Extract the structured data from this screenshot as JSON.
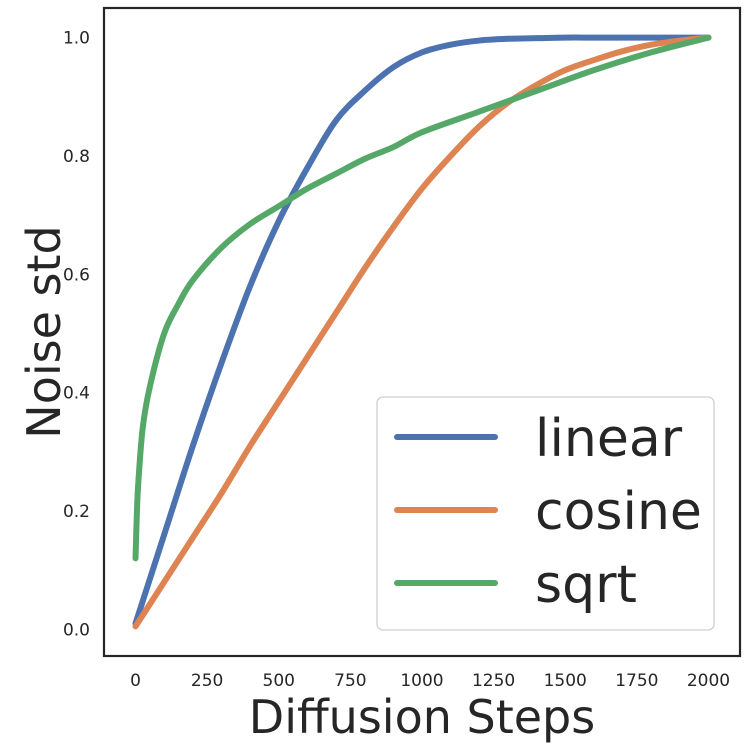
{
  "chart_data": {
    "type": "line",
    "title": "",
    "xlabel": "Diffusion Steps",
    "ylabel": "Noise std",
    "xlim": [
      -110,
      2110
    ],
    "ylim": [
      -0.045,
      1.05
    ],
    "xticks": [
      0,
      250,
      500,
      750,
      1000,
      1250,
      1500,
      1750,
      2000
    ],
    "yticks": [
      0.0,
      0.2,
      0.4,
      0.6,
      0.8,
      1.0
    ],
    "xtick_labels": [
      "0",
      "250",
      "500",
      "750",
      "1000",
      "1250",
      "1500",
      "1750",
      "2000"
    ],
    "ytick_labels": [
      "0.0",
      "0.2",
      "0.4",
      "0.6",
      "0.8",
      "1.0"
    ],
    "grid": false,
    "legend_position": "lower-right",
    "series": [
      {
        "name": "linear",
        "color": "#4c72b0",
        "x": [
          0,
          100,
          200,
          300,
          400,
          500,
          600,
          700,
          800,
          900,
          1000,
          1100,
          1200,
          1300,
          1400,
          1500,
          1600,
          1700,
          1800,
          1900,
          2000
        ],
        "y": [
          0.01,
          0.16,
          0.31,
          0.45,
          0.58,
          0.69,
          0.78,
          0.86,
          0.91,
          0.95,
          0.975,
          0.988,
          0.995,
          0.998,
          0.999,
          1.0,
          1.0,
          1.0,
          1.0,
          1.0,
          1.0
        ]
      },
      {
        "name": "cosine",
        "color": "#dd8452",
        "x": [
          0,
          100,
          200,
          300,
          400,
          500,
          600,
          700,
          800,
          900,
          1000,
          1100,
          1200,
          1300,
          1400,
          1500,
          1600,
          1700,
          1800,
          1900,
          2000
        ],
        "y": [
          0.005,
          0.08,
          0.155,
          0.23,
          0.31,
          0.385,
          0.46,
          0.535,
          0.61,
          0.68,
          0.745,
          0.8,
          0.85,
          0.89,
          0.92,
          0.945,
          0.962,
          0.977,
          0.988,
          0.995,
          1.0
        ]
      },
      {
        "name": "sqrt",
        "color": "#55a868",
        "x": [
          0,
          5,
          10,
          25,
          50,
          100,
          150,
          200,
          300,
          400,
          500,
          600,
          700,
          800,
          900,
          1000,
          1200,
          1400,
          1600,
          1800,
          2000
        ],
        "y": [
          0.12,
          0.2,
          0.25,
          0.34,
          0.41,
          0.5,
          0.55,
          0.59,
          0.645,
          0.685,
          0.715,
          0.745,
          0.77,
          0.795,
          0.815,
          0.84,
          0.875,
          0.91,
          0.945,
          0.975,
          1.0
        ]
      }
    ]
  }
}
